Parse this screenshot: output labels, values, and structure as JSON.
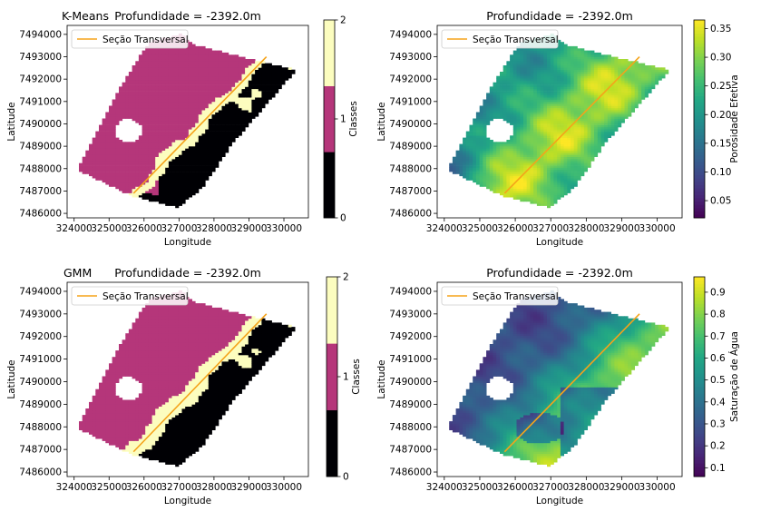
{
  "chart_data": [
    {
      "type": "scatter",
      "panel_label": "K-Means",
      "title": "Profundidade = -2392.0m",
      "xlabel": "Longitude",
      "ylabel": "Latitude",
      "xlim": [
        323800,
        330700
      ],
      "ylim": [
        7485800,
        7494400
      ],
      "xticks": [
        324000,
        325000,
        326000,
        327000,
        328000,
        329000,
        330000
      ],
      "yticks": [
        7486000,
        7487000,
        7488000,
        7489000,
        7490000,
        7491000,
        7492000,
        7493000,
        7494000
      ],
      "legend": {
        "label": "Seção Transversal",
        "position": "top-left"
      },
      "cross_section": {
        "x": [
          325700,
          329500
        ],
        "y": [
          7486900,
          7493000
        ],
        "color": "#f5a31a"
      },
      "colorbar": {
        "label": "Classes",
        "ticks": [
          "0",
          "1",
          "2"
        ],
        "colors": [
          "#000004",
          "#b5367a",
          "#fcfdbf"
        ],
        "discrete": true
      },
      "classes": [
        0,
        1,
        2
      ],
      "colors": {
        "0": "#000004",
        "1": "#b5367a",
        "2": "#fcfdbf"
      }
    },
    {
      "type": "scatter",
      "title": "Profundidade = -2392.0m",
      "xlabel": "Longitude",
      "ylabel": "Latitude",
      "xlim": [
        323800,
        330700
      ],
      "ylim": [
        7485800,
        7494400
      ],
      "xticks": [
        324000,
        325000,
        326000,
        327000,
        328000,
        329000,
        330000
      ],
      "yticks": [
        7486000,
        7487000,
        7488000,
        7489000,
        7490000,
        7491000,
        7492000,
        7493000,
        7494000
      ],
      "legend": {
        "label": "Seção Transversal",
        "position": "top-left"
      },
      "cross_section": {
        "x": [
          325700,
          329500
        ],
        "y": [
          7486900,
          7493000
        ],
        "color": "#f5a31a"
      },
      "colorbar": {
        "label": "Porosidade Efetiva",
        "min": 0.02,
        "max": 0.365,
        "ticks": [
          "0.05",
          "0.10",
          "0.15",
          "0.20",
          "0.25",
          "0.30",
          "0.35"
        ],
        "tick_values": [
          0.05,
          0.1,
          0.15,
          0.2,
          0.25,
          0.3,
          0.35
        ],
        "colormap": "viridis"
      }
    },
    {
      "type": "scatter",
      "panel_label": "GMM",
      "title": "Profundidade = -2392.0m",
      "xlabel": "Longitude",
      "ylabel": "Latitude",
      "xlim": [
        323800,
        330700
      ],
      "ylim": [
        7485800,
        7494400
      ],
      "xticks": [
        324000,
        325000,
        326000,
        327000,
        328000,
        329000,
        330000
      ],
      "yticks": [
        7486000,
        7487000,
        7488000,
        7489000,
        7490000,
        7491000,
        7492000,
        7493000,
        7494000
      ],
      "legend": {
        "label": "Seção Transversal",
        "position": "top-left"
      },
      "cross_section": {
        "x": [
          325700,
          329500
        ],
        "y": [
          7486900,
          7493000
        ],
        "color": "#f5a31a"
      },
      "colorbar": {
        "label": "Classes",
        "ticks": [
          "0",
          "1",
          "2"
        ],
        "colors": [
          "#000004",
          "#b5367a",
          "#fcfdbf"
        ],
        "discrete": true
      },
      "classes": [
        0,
        1,
        2
      ],
      "colors": {
        "0": "#000004",
        "1": "#b5367a",
        "2": "#fcfdbf"
      }
    },
    {
      "type": "scatter",
      "title": "Profundidade = -2392.0m",
      "xlabel": "Longitude",
      "ylabel": "Latitude",
      "xlim": [
        323800,
        330700
      ],
      "ylim": [
        7485800,
        7494400
      ],
      "xticks": [
        324000,
        325000,
        326000,
        327000,
        328000,
        329000,
        330000
      ],
      "yticks": [
        7486000,
        7487000,
        7488000,
        7489000,
        7490000,
        7491000,
        7492000,
        7493000,
        7494000
      ],
      "legend": {
        "label": "Seção Transversal",
        "position": "top-left"
      },
      "cross_section": {
        "x": [
          325700,
          329500
        ],
        "y": [
          7486900,
          7493000
        ],
        "color": "#f5a31a"
      },
      "colorbar": {
        "label": "Saturação de Água",
        "min": 0.06,
        "max": 0.97,
        "ticks": [
          "0.1",
          "0.2",
          "0.3",
          "0.4",
          "0.5",
          "0.6",
          "0.7",
          "0.8",
          "0.9"
        ],
        "tick_values": [
          0.1,
          0.2,
          0.3,
          0.4,
          0.5,
          0.6,
          0.7,
          0.8,
          0.9
        ],
        "colormap": "viridis"
      }
    }
  ]
}
